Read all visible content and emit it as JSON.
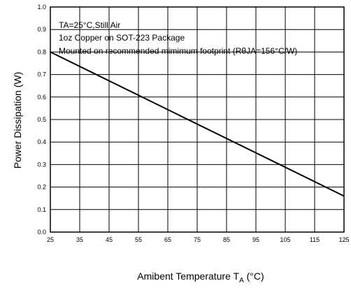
{
  "chart_data": {
    "type": "line",
    "xlabel": "Amibent Temperature T",
    "xlabel_sub": "A",
    "xlabel_unit": " (°C)",
    "ylabel": "Power Dissipation (W)",
    "xlim": [
      25,
      125
    ],
    "ylim": [
      0.0,
      1.0
    ],
    "x_ticks": [
      25,
      35,
      45,
      55,
      65,
      75,
      85,
      95,
      105,
      115,
      125
    ],
    "y_ticks": [
      "0.0",
      "0.1",
      "0.2",
      "0.3",
      "0.4",
      "0.5",
      "0.6",
      "0.7",
      "0.8",
      "0.9",
      "1.0"
    ],
    "grid": true,
    "annotations": [
      "TA=25°C,Still Air",
      "1oz Copper on SOT-223 Package",
      "Mounted on recommended mimimum footprint  (RθJA=156°C/W)"
    ],
    "series": [
      {
        "x": [
          25,
          125
        ],
        "values": [
          0.8,
          0.16
        ]
      }
    ]
  }
}
